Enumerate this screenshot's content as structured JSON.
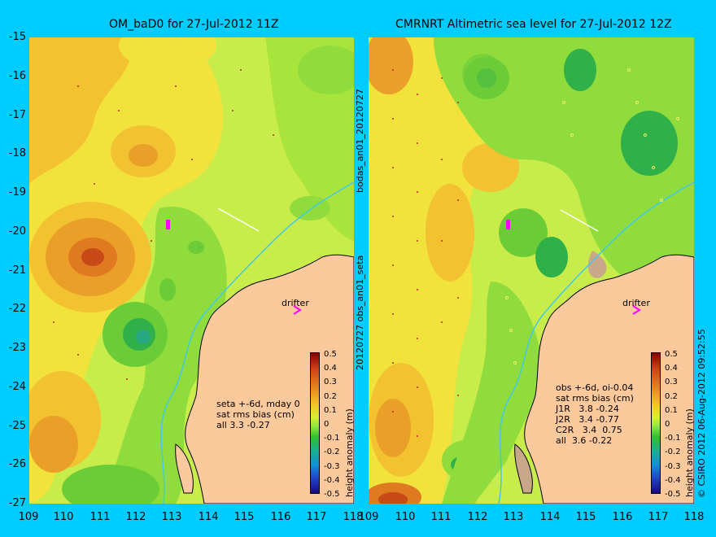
{
  "left_panel": {
    "title": "OM_baD0 for 27-Jul-2012 11Z",
    "info_lines": [
      "seta +-6d, mday 0",
      "sat rms bias (cm)",
      "all 3.3 -0.27"
    ],
    "drifter_label": "drifter"
  },
  "right_panel": {
    "title": "CMRNRT Altimetric sea level  for 27-Jul-2012 12Z",
    "info_lines": [
      "obs +-6d, oi-0.04",
      "sat rms bias (cm)",
      "J1R   3.8 -0.24",
      "J2R   3.4 -0.77",
      "C2R   3.4  0.75",
      "all  3.6 -0.22"
    ],
    "drifter_label": "drifter"
  },
  "middle_label_top": "bodas_an01_20120727",
  "middle_label_bottom": "20120727 obs_an01_seta",
  "copyright": "© CSIRO 2012   06-Aug-2012 09:52:55",
  "y_ticks": [
    "-15",
    "-16",
    "-17",
    "-18",
    "-19",
    "-20",
    "-21",
    "-22",
    "-23",
    "-24",
    "-25",
    "-26",
    "-27"
  ],
  "x_ticks": [
    "109",
    "110",
    "111",
    "112",
    "113",
    "114",
    "115",
    "116",
    "117",
    "118"
  ],
  "colorbar": {
    "label": "height anomaly (m)",
    "ticks": [
      "0.5",
      "0.4",
      "0.3",
      "0.2",
      "0.1",
      "0",
      "-0.1",
      "-0.2",
      "-0.3",
      "-0.4",
      "-0.5"
    ]
  },
  "colors": {
    "background": "#00ccff",
    "land": "#fcc99c",
    "marker": "#ff00ff"
  }
}
